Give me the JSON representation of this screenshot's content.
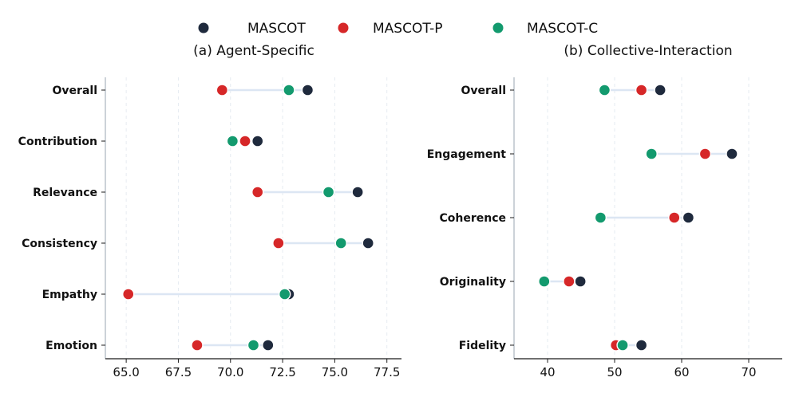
{
  "colors": {
    "MASCOT": "#1f2a3d",
    "MASCOT-P": "#d62728",
    "MASCOT-C": "#139a6e",
    "connector": "#dce6f3",
    "axis": "#aab4bf",
    "grid": "#e6ebf1"
  },
  "legend": {
    "items": [
      {
        "label": "MASCOT",
        "color": "#1f2a3d"
      },
      {
        "label": "MASCOT-P",
        "color": "#d62728"
      },
      {
        "label": "MASCOT-C",
        "color": "#139a6e"
      }
    ]
  },
  "chart_data": [
    {
      "type": "dumbbell",
      "title": "(a) Agent-Specific",
      "categories": [
        "Overall",
        "Contribution",
        "Relevance",
        "Consistency",
        "Empathy",
        "Emotion"
      ],
      "series": [
        {
          "name": "MASCOT",
          "values": [
            73.7,
            71.3,
            76.1,
            76.6,
            72.8,
            71.8
          ]
        },
        {
          "name": "MASCOT-P",
          "values": [
            69.6,
            70.7,
            71.3,
            72.3,
            65.1,
            68.4
          ]
        },
        {
          "name": "MASCOT-C",
          "values": [
            72.8,
            70.1,
            74.7,
            75.3,
            72.6,
            71.1
          ]
        }
      ],
      "xlim": [
        64.0,
        78.2
      ],
      "xticks": [
        65.0,
        67.5,
        70.0,
        72.5,
        75.0,
        77.5
      ],
      "xtick_labels": [
        "65.0",
        "67.5",
        "70.0",
        "72.5",
        "75.0",
        "77.5"
      ],
      "grid": true
    },
    {
      "type": "dumbbell",
      "title": "(b) Collective-Interaction",
      "categories": [
        "Overall",
        "Engagement",
        "Coherence",
        "Originality",
        "Fidelity"
      ],
      "series": [
        {
          "name": "MASCOT",
          "values": [
            56.8,
            67.5,
            61.0,
            44.9,
            54.0
          ]
        },
        {
          "name": "MASCOT-P",
          "values": [
            54.0,
            63.5,
            58.9,
            43.2,
            50.2
          ]
        },
        {
          "name": "MASCOT-C",
          "values": [
            48.5,
            55.5,
            47.9,
            39.5,
            51.2
          ]
        }
      ],
      "xlim": [
        35.0,
        75.0
      ],
      "xticks": [
        40,
        50,
        60,
        70
      ],
      "xtick_labels": [
        "40",
        "50",
        "60",
        "70"
      ],
      "grid": true
    }
  ]
}
